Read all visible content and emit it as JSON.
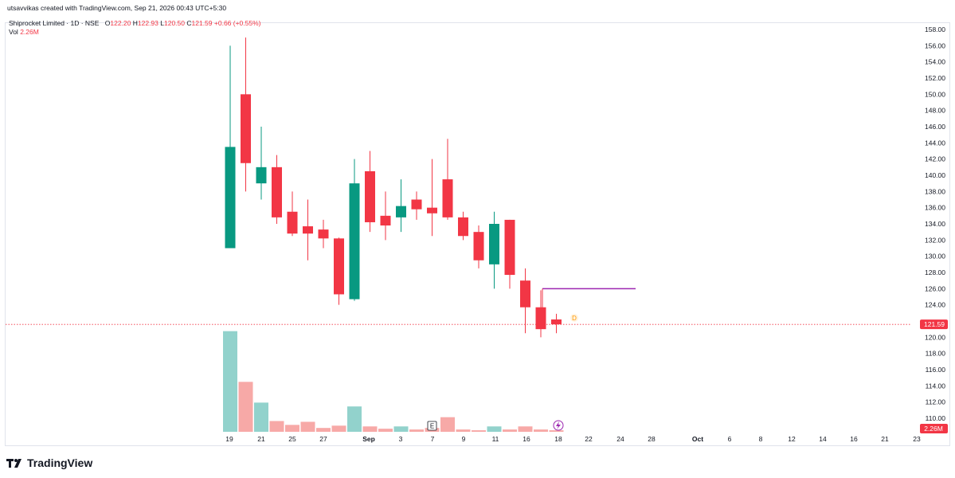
{
  "header": {
    "attribution": "utsavvikas created with TradingView.com, Sep 21, 2026 00:43 UTC+5:30"
  },
  "legend": {
    "symbol": "Shiprocket Limited · 1D · NSE",
    "open_label": "O",
    "open": "122.20",
    "high_label": "H",
    "high": "122.93",
    "low_label": "L",
    "low": "120.50",
    "close_label": "C",
    "close": "121.59",
    "change": "+0.66 (+0.55%)",
    "vol_label": "Vol",
    "vol": "2.26M"
  },
  "brand": {
    "name": "TradingView",
    "logo": "tradingview-logo-icon"
  },
  "markers": {
    "earnings": "E",
    "dividend": "D",
    "flash_icon": "lightning-icon"
  },
  "colors": {
    "up": "#089981",
    "down": "#f23645",
    "vol_up": "#92d2cc",
    "vol_down": "#f7a9a7",
    "hline": "#9c27b0",
    "grid": "#f0f3fa"
  },
  "chart_data": {
    "type": "candlestick",
    "y_ticks": [
      "158.00",
      "156.00",
      "154.00",
      "152.00",
      "150.00",
      "148.00",
      "146.00",
      "144.00",
      "142.00",
      "140.00",
      "138.00",
      "136.00",
      "134.00",
      "132.00",
      "130.00",
      "128.00",
      "126.00",
      "124.00",
      "122.00",
      "120.00",
      "118.00",
      "116.00",
      "114.00",
      "112.00",
      "110.00"
    ],
    "ylim": [
      109,
      159.8
    ],
    "x_ticks": [
      "19",
      "21",
      "25",
      "27",
      "Sep",
      "3",
      "7",
      "9",
      "11",
      "16",
      "18",
      "22",
      "24",
      "28",
      "Oct",
      "6",
      "8",
      "12",
      "14",
      "16",
      "21",
      "23"
    ],
    "price_label": "121.59",
    "volume_label": "2.26M",
    "horizontal_line": {
      "value": 126.0
    },
    "candles": [
      {
        "o": 131.0,
        "h": 156.0,
        "l": 131.0,
        "c": 143.5
      },
      {
        "o": 150.0,
        "h": 157.0,
        "l": 138.0,
        "c": 141.5
      },
      {
        "o": 139.0,
        "h": 146.0,
        "l": 137.0,
        "c": 141.0
      },
      {
        "o": 141.0,
        "h": 142.5,
        "l": 134.0,
        "c": 134.8
      },
      {
        "o": 135.5,
        "h": 138.0,
        "l": 132.5,
        "c": 132.8
      },
      {
        "o": 133.7,
        "h": 137.0,
        "l": 129.5,
        "c": 132.8
      },
      {
        "o": 133.3,
        "h": 134.5,
        "l": 131.0,
        "c": 132.2
      },
      {
        "o": 132.2,
        "h": 132.3,
        "l": 124.0,
        "c": 125.3
      },
      {
        "o": 124.7,
        "h": 142.0,
        "l": 124.5,
        "c": 139.0
      },
      {
        "o": 140.5,
        "h": 143.0,
        "l": 133.0,
        "c": 134.2
      },
      {
        "o": 135.0,
        "h": 138.0,
        "l": 132.0,
        "c": 133.8
      },
      {
        "o": 134.8,
        "h": 139.5,
        "l": 133.0,
        "c": 136.2
      },
      {
        "o": 137.0,
        "h": 138.0,
        "l": 134.5,
        "c": 135.8
      },
      {
        "o": 136.0,
        "h": 142.0,
        "l": 132.5,
        "c": 135.3
      },
      {
        "o": 139.5,
        "h": 144.5,
        "l": 134.5,
        "c": 134.8
      },
      {
        "o": 134.8,
        "h": 135.5,
        "l": 132.0,
        "c": 132.5
      },
      {
        "o": 133.0,
        "h": 133.8,
        "l": 128.5,
        "c": 129.5
      },
      {
        "o": 129.0,
        "h": 135.5,
        "l": 126.0,
        "c": 134.0
      },
      {
        "o": 134.5,
        "h": 134.5,
        "l": 126.0,
        "c": 127.7
      },
      {
        "o": 127.0,
        "h": 128.5,
        "l": 120.5,
        "c": 123.7
      },
      {
        "o": 123.7,
        "h": 125.8,
        "l": 120.0,
        "c": 121.0
      },
      {
        "o": 122.2,
        "h": 122.9,
        "l": 120.5,
        "c": 121.6
      }
    ],
    "volume_scale_max": 14.0,
    "volumes": [
      13.1,
      6.5,
      3.8,
      1.4,
      0.9,
      1.3,
      0.5,
      0.8,
      3.3,
      0.7,
      0.4,
      0.7,
      0.3,
      0.5,
      1.9,
      0.3,
      0.2,
      0.7,
      0.3,
      0.7,
      0.3,
      0.2
    ]
  }
}
